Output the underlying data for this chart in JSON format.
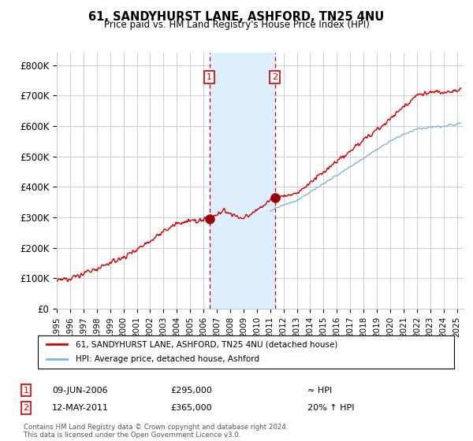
{
  "title": "61, SANDYHURST LANE, ASHFORD, TN25 4NU",
  "subtitle": "Price paid vs. HM Land Registry's House Price Index (HPI)",
  "ylabel_ticks": [
    "£0",
    "£100K",
    "£200K",
    "£300K",
    "£400K",
    "£500K",
    "£600K",
    "£700K",
    "£800K"
  ],
  "ytick_values": [
    0,
    100000,
    200000,
    300000,
    400000,
    500000,
    600000,
    700000,
    800000
  ],
  "ylim": [
    0,
    840000
  ],
  "xlim_start": 1995.0,
  "xlim_end": 2025.5,
  "sale1_date": 2006.44,
  "sale1_price": 295000,
  "sale2_date": 2011.36,
  "sale2_price": 365000,
  "sale1_label": "1",
  "sale2_label": "2",
  "shade_color": "#ddeeff",
  "vline_color": "#cc0000",
  "hpi_line_color": "#7fb2d5",
  "price_line_color": "#cc0000",
  "marker_color": "#990000",
  "legend_label1": "61, SANDYHURST LANE, ASHFORD, TN25 4NU (detached house)",
  "legend_label2": "HPI: Average price, detached house, Ashford",
  "annotation1_date": "09-JUN-2006",
  "annotation1_price": "£295,000",
  "annotation1_hpi": "≈ HPI",
  "annotation2_date": "12-MAY-2011",
  "annotation2_price": "£365,000",
  "annotation2_hpi": "20% ↑ HPI",
  "footer": "Contains HM Land Registry data © Crown copyright and database right 2024.\nThis data is licensed under the Open Government Licence v3.0.",
  "background_color": "#ffffff",
  "grid_color": "#cccccc",
  "xtick_years": [
    1995,
    1996,
    1997,
    1998,
    1999,
    2000,
    2001,
    2002,
    2003,
    2004,
    2005,
    2006,
    2007,
    2008,
    2009,
    2010,
    2011,
    2012,
    2013,
    2014,
    2015,
    2016,
    2017,
    2018,
    2019,
    2020,
    2021,
    2022,
    2023,
    2024,
    2025
  ]
}
